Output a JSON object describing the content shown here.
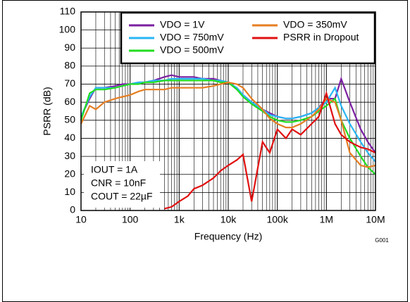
{
  "chart_data": {
    "type": "line",
    "xlabel": "Frequency (Hz)",
    "ylabel": "PSRR (dB)",
    "x": [
      10,
      15,
      20,
      30,
      50,
      70,
      100,
      150,
      200,
      300,
      500,
      700,
      1000,
      1500,
      2000,
      3000,
      5000,
      7000,
      10000,
      15000,
      20000,
      30000,
      50000,
      70000,
      100000,
      150000,
      200000,
      300000,
      500000,
      700000,
      1000000,
      1500000,
      2000000,
      3000000,
      5000000,
      7000000,
      10000000
    ],
    "series": [
      {
        "name": "VDO = 1V",
        "color": "#7b1fa2",
        "values": [
          52,
          62,
          68,
          68,
          69,
          70,
          70,
          71,
          71,
          72,
          74,
          75,
          74,
          74,
          74,
          73,
          73,
          72,
          71,
          67,
          64,
          60,
          56,
          54,
          52,
          51,
          51,
          52,
          54,
          57,
          62,
          62,
          73,
          60,
          45,
          38,
          32
        ]
      },
      {
        "name": "VDO = 750mV",
        "color": "#29b6f6",
        "values": [
          52,
          63,
          68,
          68,
          68,
          69,
          70,
          71,
          71,
          72,
          72,
          73,
          73,
          73,
          73,
          73,
          72,
          72,
          71,
          68,
          64,
          60,
          56,
          53,
          52,
          51,
          51,
          52,
          54,
          57,
          60,
          68,
          58,
          48,
          38,
          32,
          27
        ]
      },
      {
        "name": "VDO = 500mV",
        "color": "#22dd22",
        "values": [
          50,
          65,
          67,
          67,
          68,
          69,
          70,
          70,
          71,
          71,
          72,
          72,
          72,
          72,
          72,
          72,
          72,
          71,
          71,
          67,
          63,
          59,
          55,
          52,
          50,
          49,
          49,
          50,
          52,
          55,
          58,
          62,
          50,
          40,
          30,
          24,
          20
        ]
      },
      {
        "name": "VDO = 350mV",
        "color": "#e67e22",
        "values": [
          48,
          58,
          56,
          60,
          62,
          63,
          64,
          66,
          67,
          67,
          67,
          68,
          68,
          68,
          68,
          68,
          69,
          70,
          71,
          70,
          68,
          62,
          56,
          51,
          48,
          46,
          46,
          48,
          52,
          56,
          62,
          60,
          50,
          32,
          25,
          24,
          25
        ]
      },
      {
        "name": "PSRR in Dropout",
        "color": "#e01010",
        "values": [
          null,
          null,
          null,
          null,
          null,
          null,
          null,
          null,
          null,
          null,
          1,
          2,
          5,
          8,
          12,
          14,
          18,
          22,
          25,
          28,
          31,
          5,
          38,
          32,
          45,
          40,
          45,
          42,
          48,
          52,
          65,
          48,
          42,
          38,
          35,
          34,
          32
        ]
      }
    ],
    "xlim": [
      10,
      10000000
    ],
    "ylim": [
      0,
      110
    ],
    "log_x": true,
    "grid": true,
    "xticks": [
      10,
      100,
      {
        "value": 1000,
        "label": "1k"
      },
      {
        "value": 10000,
        "label": "10k"
      },
      {
        "value": 100000,
        "label": "100k"
      },
      {
        "value": 1000000,
        "label": "1M"
      },
      {
        "value": 10000000,
        "label": "10M"
      }
    ],
    "yticks": [
      0,
      10,
      20,
      30,
      40,
      50,
      60,
      70,
      80,
      90,
      100,
      110
    ],
    "annotations": [
      "IOUT = 1A",
      "CNR = 10nF",
      "COUT = 22µF"
    ],
    "figure_id": "G001"
  }
}
